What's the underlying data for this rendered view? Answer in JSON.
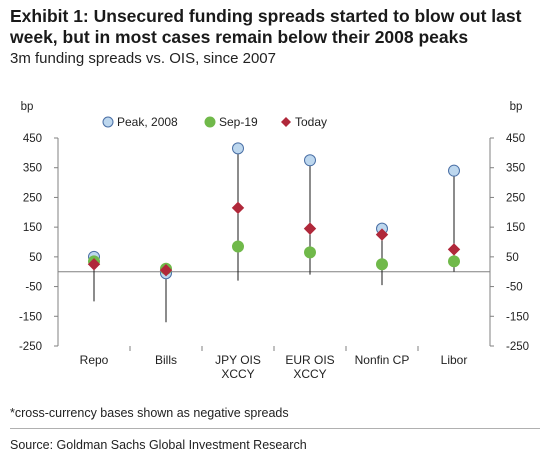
{
  "title": "Exhibit 1: Unsecured funding spreads started to blow out last week, but in most cases remain below their 2008 peaks",
  "subtitle": "3m funding spreads vs. OIS, since 2007",
  "footnote": "*cross-currency bases shown as negative spreads",
  "source": "Source: Goldman Sachs Global Investment Research",
  "chart_data": {
    "type": "scatter",
    "ylabel_left": "bp",
    "ylabel_right": "bp",
    "ylim": [
      -250,
      450
    ],
    "yticks": [
      450,
      350,
      250,
      150,
      50,
      -50,
      -150,
      -250
    ],
    "categories": [
      [
        "Repo"
      ],
      [
        "Bills"
      ],
      [
        "JPY OIS",
        "XCCY"
      ],
      [
        "EUR OIS",
        "XCCY"
      ],
      [
        "Nonfin CP"
      ],
      [
        "Libor"
      ]
    ],
    "range": {
      "low": [
        -100,
        -170,
        -30,
        -10,
        -45,
        0
      ],
      "high": [
        50,
        10,
        415,
        375,
        145,
        340
      ]
    },
    "series": [
      {
        "name": "Peak, 2008",
        "marker": "circle",
        "color": "#bdd7ee",
        "stroke": "#4a6fa5",
        "values": [
          50,
          -5,
          415,
          375,
          145,
          340
        ]
      },
      {
        "name": "Sep-19",
        "marker": "circle",
        "color": "#70b94a",
        "values": [
          35,
          10,
          85,
          65,
          25,
          35
        ]
      },
      {
        "name": "Today",
        "marker": "diamond",
        "color": "#b0283a",
        "values": [
          25,
          5,
          215,
          145,
          125,
          75
        ]
      }
    ],
    "legend_position": "top",
    "grid": false
  },
  "colors": {
    "axis": "#808080",
    "line": "#1a1a1a"
  }
}
